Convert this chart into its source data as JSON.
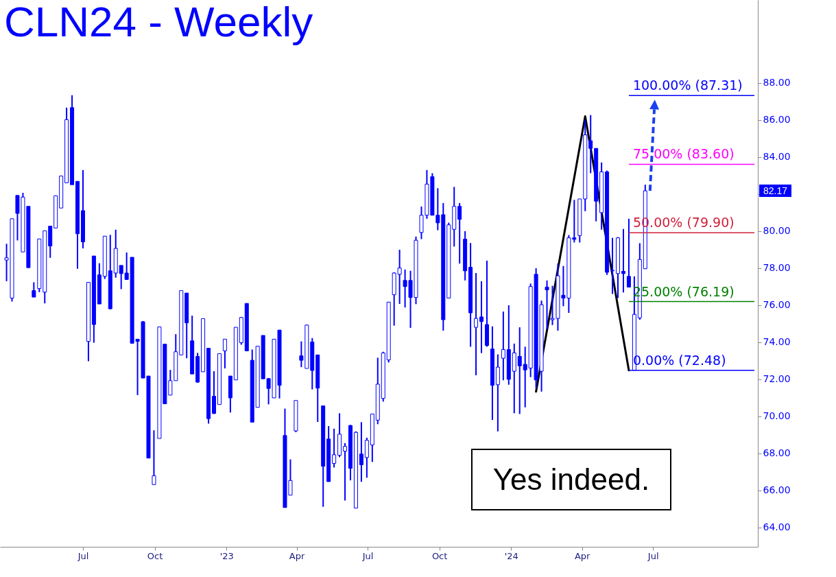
{
  "chart_data": {
    "type": "candlestick",
    "title": "CLN24 - Weekly",
    "x": [
      "2022-03-25",
      "2022-04-01",
      "2022-04-08",
      "2022-04-15",
      "2022-04-22",
      "2022-04-29",
      "2022-05-06",
      "2022-05-13",
      "2022-05-20",
      "2022-05-27",
      "2022-06-03",
      "2022-06-10",
      "2022-06-17",
      "2022-06-24",
      "2022-07-01",
      "2022-07-08",
      "2022-07-15",
      "2022-07-22",
      "2022-07-29",
      "2022-08-05",
      "2022-08-12",
      "2022-08-19",
      "2022-08-26",
      "2022-09-02",
      "2022-09-09",
      "2022-09-16",
      "2022-09-23",
      "2022-09-30",
      "2022-10-07",
      "2022-10-14",
      "2022-10-21",
      "2022-10-28",
      "2022-11-04",
      "2022-11-11",
      "2022-11-18",
      "2022-11-25",
      "2022-12-02",
      "2022-12-09",
      "2022-12-16",
      "2022-12-23",
      "2022-12-30",
      "2023-01-06",
      "2023-01-13",
      "2023-01-20",
      "2023-01-27",
      "2023-02-03",
      "2023-02-10",
      "2023-02-17",
      "2023-02-24",
      "2023-03-03",
      "2023-03-10",
      "2023-03-17",
      "2023-03-24",
      "2023-03-31",
      "2023-04-07",
      "2023-04-14",
      "2023-04-21",
      "2023-04-28",
      "2023-05-05",
      "2023-05-12",
      "2023-05-19",
      "2023-05-26",
      "2023-06-02",
      "2023-06-09",
      "2023-06-16",
      "2023-06-23",
      "2023-06-30",
      "2023-07-07",
      "2023-07-14",
      "2023-07-21",
      "2023-07-28",
      "2023-08-04",
      "2023-08-11",
      "2023-08-18",
      "2023-08-25",
      "2023-09-01",
      "2023-09-08",
      "2023-09-15",
      "2023-09-22",
      "2023-09-29",
      "2023-10-06",
      "2023-10-13",
      "2023-10-20",
      "2023-10-27",
      "2023-11-03",
      "2023-11-10",
      "2023-11-17",
      "2023-11-24",
      "2023-12-01",
      "2023-12-08",
      "2023-12-15",
      "2023-12-22",
      "2023-12-29",
      "2024-01-05",
      "2024-01-12",
      "2024-01-19",
      "2024-01-26",
      "2024-02-02",
      "2024-02-09",
      "2024-02-16",
      "2024-02-23",
      "2024-03-01",
      "2024-03-08",
      "2024-03-15",
      "2024-03-22",
      "2024-03-29",
      "2024-04-05",
      "2024-04-12",
      "2024-04-19",
      "2024-04-26",
      "2024-05-03",
      "2024-05-10",
      "2024-05-17",
      "2024-05-24",
      "2024-05-31",
      "2024-06-07",
      "2024-06-14",
      "2024-06-21"
    ],
    "series": [
      {
        "type": "candlestick",
        "color": "#0000ff",
        "ohlc": [
          [
            78.43,
            79.31,
            77.29,
            78.55
          ],
          [
            76.38,
            80.66,
            76.19,
            80.66
          ],
          [
            81.92,
            81.92,
            79.49,
            80.95
          ],
          [
            78.87,
            82.06,
            78.87,
            81.83
          ],
          [
            81.33,
            81.33,
            78.02,
            78.02
          ],
          [
            76.78,
            77.23,
            76.43,
            76.43
          ],
          [
            76.89,
            79.57,
            76.7,
            79.57
          ],
          [
            76.7,
            80.01,
            76.09,
            80.01
          ],
          [
            80.26,
            80.26,
            78.55,
            79.19
          ],
          [
            80.16,
            81.9,
            80.16,
            81.9
          ],
          [
            81.24,
            82.97,
            81.24,
            82.97
          ],
          [
            82.6,
            86.66,
            82.6,
            86.01
          ],
          [
            86.66,
            87.33,
            82.5,
            82.5
          ],
          [
            82.68,
            82.68,
            77.96,
            79.85
          ],
          [
            81.1,
            83.29,
            79.06,
            79.41
          ],
          [
            74.04,
            77.23,
            72.97,
            77.23
          ],
          [
            78.65,
            78.65,
            73.97,
            74.95
          ],
          [
            77.63,
            78.26,
            76.06,
            76.06
          ],
          [
            77.55,
            79.72,
            77.41,
            79.72
          ],
          [
            77.85,
            79.79,
            75.77,
            75.8
          ],
          [
            77.73,
            80.07,
            77.48,
            79.06
          ],
          [
            78.14,
            78.14,
            76.86,
            77.7
          ],
          [
            77.73,
            78.84,
            77.38,
            77.38
          ],
          [
            78.58,
            78.58,
            73.94,
            73.94
          ],
          [
            74.16,
            74.16,
            71.14,
            74.04
          ],
          [
            75.1,
            75.14,
            72.06,
            72.06
          ],
          [
            72.17,
            72.17,
            67.74,
            67.74
          ],
          [
            66.31,
            69.24,
            66.31,
            66.79
          ],
          [
            68.8,
            74.82,
            68.8,
            74.82
          ],
          [
            73.89,
            73.89,
            70.67,
            70.67
          ],
          [
            71.14,
            72.5,
            71.14,
            71.92
          ],
          [
            71.92,
            74.43,
            71.92,
            73.48
          ],
          [
            73.31,
            76.78,
            73.31,
            76.78
          ],
          [
            76.65,
            76.65,
            73.13,
            75.04
          ],
          [
            74.07,
            75.43,
            72.28,
            72.28
          ],
          [
            73.23,
            73.42,
            71.81,
            71.84
          ],
          [
            72.4,
            75.27,
            72.4,
            75.27
          ],
          [
            73.67,
            73.67,
            69.6,
            69.87
          ],
          [
            71.08,
            72.43,
            70.12,
            70.15
          ],
          [
            70.63,
            73.38,
            70.63,
            73.38
          ],
          [
            73.53,
            74.16,
            72.58,
            74.16
          ],
          [
            72.17,
            72.17,
            70.2,
            70.99
          ],
          [
            71.96,
            74.8,
            71.96,
            74.8
          ],
          [
            73.97,
            75.36,
            73.86,
            75.33
          ],
          [
            76.09,
            76.09,
            73.53,
            73.53
          ],
          [
            73.02,
            73.6,
            69.68,
            69.68
          ],
          [
            70.48,
            73.78,
            70.48,
            73.78
          ],
          [
            74.36,
            74.36,
            72.02,
            72.02
          ],
          [
            72.03,
            72.06,
            70.64,
            71.5
          ],
          [
            70.99,
            74.16,
            70.99,
            74.16
          ],
          [
            74.65,
            74.65,
            70.96,
            71.67
          ],
          [
            68.96,
            70.41,
            65.07,
            65.07
          ],
          [
            65.74,
            67.67,
            65.74,
            66.53
          ],
          [
            69.21,
            70.85,
            69.14,
            70.85
          ],
          [
            73.26,
            74.04,
            72.65,
            73.02
          ],
          [
            72.58,
            74.95,
            72.58,
            74.92
          ],
          [
            74.01,
            74.22,
            71.45,
            72.47
          ],
          [
            73.31,
            73.31,
            69.69,
            71.52
          ],
          [
            70.56,
            70.56,
            65.11,
            67.3
          ],
          [
            68.77,
            69.47,
            66.47,
            66.47
          ],
          [
            67.45,
            69.33,
            67.23,
            67.92
          ],
          [
            67.89,
            70.16,
            67.79,
            69.03
          ],
          [
            68.11,
            68.55,
            65.45,
            68.37
          ],
          [
            69.5,
            69.53,
            66.54,
            67.19
          ],
          [
            65.04,
            69.18,
            65.04,
            69.13
          ],
          [
            67.96,
            69.68,
            66.46,
            67.38
          ],
          [
            67.77,
            68.84,
            66.68,
            68.7
          ],
          [
            68.45,
            70.12,
            67.53,
            70.12
          ],
          [
            69.79,
            73.16,
            69.57,
            71.73
          ],
          [
            70.96,
            73.48,
            70.79,
            73.42
          ],
          [
            73.04,
            76.16,
            72.9,
            76.16
          ],
          [
            76.56,
            77.77,
            74.89,
            77.73
          ],
          [
            77.66,
            78.99,
            76.06,
            78.0
          ],
          [
            77.33,
            77.92,
            75.87,
            77.0
          ],
          [
            77.33,
            77.85,
            74.77,
            76.41
          ],
          [
            76.41,
            79.7,
            76.05,
            79.5
          ],
          [
            79.92,
            81.32,
            79.56,
            80.85
          ],
          [
            80.85,
            83.29,
            80.66,
            82.53
          ],
          [
            82.93,
            83.12,
            80.85,
            80.85
          ],
          [
            80.85,
            82.31,
            80.04,
            80.44
          ],
          [
            80.88,
            81.51,
            74.62,
            75.21
          ],
          [
            76.38,
            80.45,
            76.38,
            80.33
          ],
          [
            80.09,
            82.38,
            79.16,
            81.33
          ],
          [
            81.33,
            81.51,
            78.24,
            80.63
          ],
          [
            79.56,
            79.99,
            77.33,
            77.85
          ],
          [
            78.04,
            79.35,
            73.75,
            75.58
          ],
          [
            74.8,
            77.73,
            72.21,
            75.28
          ],
          [
            75.36,
            77.29,
            73.41,
            75.11
          ],
          [
            74.95,
            78.4,
            73.75,
            73.82
          ],
          [
            73.63,
            74.85,
            69.8,
            71.67
          ],
          [
            71.7,
            73.34,
            69.18,
            72.65
          ],
          [
            73.13,
            75.65,
            71.94,
            73.6
          ],
          [
            73.6,
            75.99,
            71.7,
            71.99
          ],
          [
            72.43,
            73.92,
            70.16,
            73.42
          ],
          [
            73.23,
            74.8,
            70.12,
            72.72
          ],
          [
            72.8,
            73.75,
            70.48,
            72.5
          ],
          [
            72.6,
            77.16,
            72.11,
            77.0
          ],
          [
            77.66,
            77.99,
            71.52,
            71.96
          ],
          [
            72.43,
            76.24,
            71.33,
            76.02
          ],
          [
            76.97,
            77.33,
            74.7,
            76.82
          ],
          [
            75.21,
            77.04,
            74.92,
            75.28
          ],
          [
            75.28,
            78.24,
            74.62,
            77.58
          ],
          [
            76.53,
            78.11,
            75.94,
            76.38
          ],
          [
            76.38,
            79.78,
            75.58,
            79.63
          ],
          [
            79.63,
            81.68,
            79.38,
            79.55
          ],
          [
            79.75,
            81.73,
            79.38,
            81.73
          ],
          [
            81.73,
            85.97,
            81.07,
            85.19
          ],
          [
            84.87,
            86.26,
            83.12,
            84.46
          ],
          [
            84.46,
            84.46,
            80.52,
            81.61
          ],
          [
            80.99,
            83.7,
            80.07,
            83.19
          ],
          [
            83.19,
            83.26,
            77.63,
            77.77
          ],
          [
            77.85,
            79.63,
            76.6,
            77.88
          ],
          [
            77.7,
            79.67,
            76.38,
            79.63
          ],
          [
            77.82,
            80.11,
            76.68,
            77.7
          ],
          [
            77.55,
            80.66,
            76.97,
            76.97
          ],
          [
            72.48,
            77.55,
            72.48,
            75.5
          ],
          [
            75.31,
            79.34,
            75.21,
            78.46
          ],
          [
            77.96,
            82.5,
            77.96,
            82.17
          ]
        ]
      },
      {
        "type": "line",
        "color": "#000000",
        "x": [
          "2024-02-02",
          "2024-04-05",
          "2024-05-31"
        ],
        "values": [
          71.33,
          86.19,
          72.48
        ]
      }
    ],
    "xlim": [
      "2022-03-21",
      "2024-11-08"
    ],
    "xticks": [
      {
        "value": "2022-07-01",
        "label": "Jul"
      },
      {
        "value": "2022-10-01",
        "label": "Oct"
      },
      {
        "value": "2023-01-01",
        "label": "'23"
      },
      {
        "value": "2023-04-01",
        "label": "Apr"
      },
      {
        "value": "2023-07-01",
        "label": "Jul"
      },
      {
        "value": "2023-10-01",
        "label": "Oct"
      },
      {
        "value": "2024-01-01",
        "label": "'24"
      },
      {
        "value": "2024-04-01",
        "label": "Apr"
      },
      {
        "value": "2024-07-01",
        "label": "Jul"
      }
    ],
    "ylim": [
      62.95,
      92.47
    ],
    "yticks": [
      {
        "value": 64,
        "label": "64.00"
      },
      {
        "value": 66,
        "label": "66.00"
      },
      {
        "value": 68,
        "label": "68.00"
      },
      {
        "value": 70,
        "label": "70.00"
      },
      {
        "value": 72,
        "label": "72.00"
      },
      {
        "value": 74,
        "label": "74.00"
      },
      {
        "value": 76,
        "label": "76.00"
      },
      {
        "value": 78,
        "label": "78.00"
      },
      {
        "value": 80,
        "label": "80.00"
      },
      {
        "value": 82,
        "label": null
      },
      {
        "value": 84,
        "label": "84.00"
      },
      {
        "value": 86,
        "label": "86.00"
      },
      {
        "value": 88,
        "label": "88.00"
      }
    ],
    "ref_lines": [
      {
        "axis": "y",
        "value": 87.31,
        "label": "100.00% (87.31)",
        "color": "#0000ff"
      },
      {
        "axis": "y",
        "value": 83.6,
        "label": "75.00% (83.60)",
        "color": "#ff00ff"
      },
      {
        "axis": "y",
        "value": 79.9,
        "label": "50.00% (79.90)",
        "color": "#d2203c"
      },
      {
        "axis": "y",
        "value": 76.19,
        "label": "25.00% (76.19)",
        "color": "#008000"
      },
      {
        "axis": "y",
        "value": 72.48,
        "label": "0.00% (72.48)",
        "color": "#0000ff"
      }
    ],
    "annotations": [
      "Yes indeed.",
      "82.17"
    ],
    "grid": false,
    "line_style": "solid"
  }
}
